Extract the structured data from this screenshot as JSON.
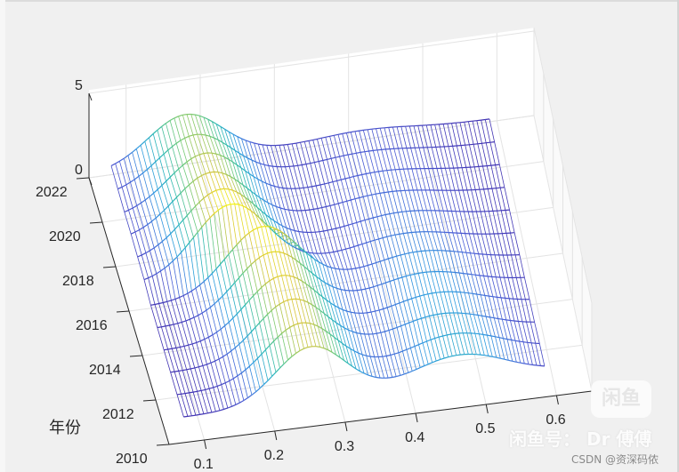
{
  "chart_data": {
    "type": "surface_mesh_3d",
    "title": "",
    "xlabel": "",
    "ylabel": "年份",
    "zlabel": "",
    "x_ticks": [
      "0.1",
      "0.2",
      "0.3",
      "0.4",
      "0.5",
      "0.6"
    ],
    "y_ticks": [
      "2010",
      "2012",
      "2014",
      "2016",
      "2018",
      "2020",
      "2022"
    ],
    "z_ticks": [
      "0",
      "5"
    ],
    "xlim": [
      0.05,
      0.65
    ],
    "ylim": [
      2010,
      2022
    ],
    "zlim": [
      0,
      5
    ],
    "colormap": "parula",
    "colormap_stops": [
      "#3e26a8",
      "#4a5ed6",
      "#2f9be0",
      "#2ab8b6",
      "#6fca7a",
      "#d8c53a",
      "#f9fb0e"
    ],
    "grid": true,
    "years": [
      2011,
      2012,
      2013,
      2014,
      2015,
      2016,
      2017,
      2018,
      2019,
      2020,
      2021,
      2022
    ],
    "x_range": [
      0.08,
      0.59
    ],
    "peaks_by_year": [
      {
        "year": 2011,
        "main_center": 0.26,
        "main_height": 3.2,
        "second_center": 0.47,
        "second_height": 1.6
      },
      {
        "year": 2012,
        "main_center": 0.255,
        "main_height": 3.3,
        "second_center": 0.47,
        "second_height": 1.5
      },
      {
        "year": 2013,
        "main_center": 0.25,
        "main_height": 3.4,
        "second_center": 0.46,
        "second_height": 1.4
      },
      {
        "year": 2014,
        "main_center": 0.245,
        "main_height": 3.5,
        "second_center": 0.46,
        "second_height": 1.3
      },
      {
        "year": 2015,
        "main_center": 0.24,
        "main_height": 3.6,
        "second_center": 0.45,
        "second_height": 1.2
      },
      {
        "year": 2016,
        "main_center": 0.235,
        "main_height": 3.8,
        "second_center": 0.45,
        "second_height": 1.1
      },
      {
        "year": 2017,
        "main_center": 0.2,
        "main_height": 4.0,
        "second_center": 0.44,
        "second_height": 0.9
      },
      {
        "year": 2018,
        "main_center": 0.195,
        "main_height": 3.6,
        "second_center": 0.44,
        "second_height": 0.8
      },
      {
        "year": 2019,
        "main_center": 0.19,
        "main_height": 3.3,
        "second_center": 0.43,
        "second_height": 0.7
      },
      {
        "year": 2020,
        "main_center": 0.19,
        "main_height": 3.1,
        "second_center": 0.43,
        "second_height": 0.6
      },
      {
        "year": 2021,
        "main_center": 0.185,
        "main_height": 2.9,
        "second_center": 0.42,
        "second_height": 0.5
      },
      {
        "year": 2022,
        "main_center": 0.18,
        "main_height": 2.8,
        "second_center": 0.42,
        "second_height": 0.4
      }
    ],
    "peak_width": 0.05,
    "baseline": 0.15
  },
  "watermarks": {
    "badge": "闲鱼",
    "line": "闲鱼号： Dr 傅傅",
    "csdn": "CSDN @资深码侬"
  }
}
